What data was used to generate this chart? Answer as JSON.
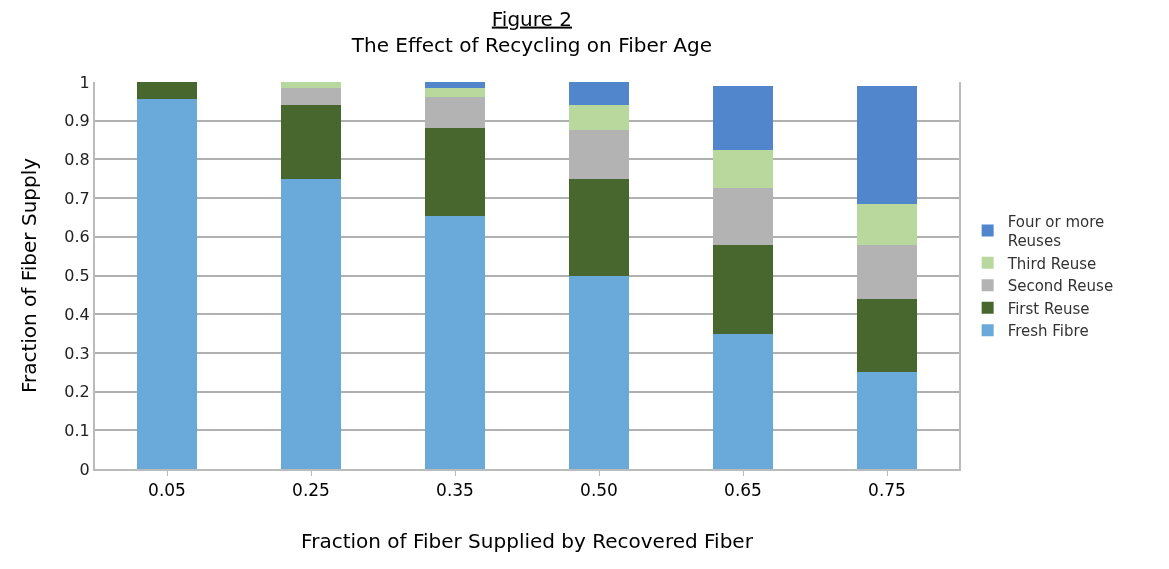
{
  "chart_data": {
    "type": "bar",
    "title": "Figure 2",
    "subtitle": "The Effect of Recycling on Fiber Age",
    "xlabel": "Fraction of Fiber Supplied by Recovered Fiber",
    "ylabel": "Fraction of Fiber Supply",
    "categories": [
      "0.05",
      "0.25",
      "0.35",
      "0.50",
      "0.65",
      "0.75"
    ],
    "stacked": true,
    "series": [
      {
        "name": "Fresh Fibre",
        "color": "#6aaadb",
        "values": [
          0.955,
          0.75,
          0.655,
          0.5,
          0.35,
          0.25
        ]
      },
      {
        "name": "First Reuse",
        "color": "#48672f",
        "values": [
          0.045,
          0.19,
          0.225,
          0.25,
          0.23,
          0.19
        ]
      },
      {
        "name": "Second Reuse",
        "color": "#b3b3b3",
        "values": [
          null,
          0.045,
          0.08,
          0.125,
          0.145,
          0.14
        ]
      },
      {
        "name": "Third Reuse",
        "color": "#b8d89e",
        "values": [
          null,
          0.015,
          0.025,
          0.065,
          0.1,
          0.105
        ]
      },
      {
        "name": "Four or more Reuses",
        "color": "#5186cd",
        "values": [
          null,
          null,
          0.015,
          0.06,
          0.165,
          0.305
        ]
      }
    ],
    "ylim": [
      0,
      1
    ],
    "yticks": [
      0,
      0.1,
      0.2,
      0.3,
      0.4,
      0.5,
      0.6,
      0.7,
      0.8,
      0.9,
      1
    ],
    "grid": "y",
    "legend": "right"
  }
}
